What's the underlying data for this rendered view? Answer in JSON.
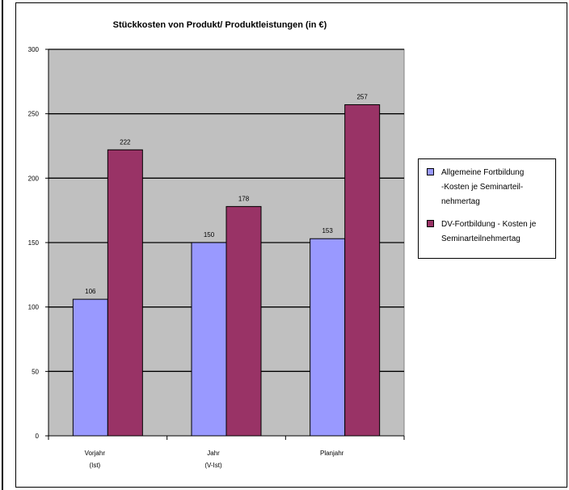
{
  "chart_data": {
    "type": "bar",
    "title": "Stückkosten von Produkt/ Produktleistungen (in €)",
    "categories": [
      [
        "Vorjahr",
        "(Ist)"
      ],
      [
        "Jahr",
        "(V-Ist)"
      ],
      [
        "Planjahr"
      ]
    ],
    "series": [
      {
        "name": "Allgemeine Fortbildung -Kosten je Seminarteil- nehmertag",
        "values": [
          106,
          150,
          153
        ],
        "color": "#9999ff"
      },
      {
        "name": "DV-Fortbildung - Kosten je Seminarteilnehmertag",
        "values": [
          222,
          178,
          257
        ],
        "color": "#993366"
      }
    ],
    "ylim": [
      0,
      300
    ],
    "yticks": [
      0,
      50,
      100,
      150,
      200,
      250,
      300
    ],
    "grid": true,
    "plot_background": "#c0c0c0",
    "legend_position": "right",
    "legend": {
      "items": [
        {
          "lines": [
            "Allgemeine Fortbildung",
            "-Kosten je Seminarteil-",
            "nehmertag"
          ],
          "color": "#9999ff"
        },
        {
          "lines": [
            "DV-Fortbildung - Kosten je",
            "Seminarteilnehmertag"
          ],
          "color": "#993366"
        }
      ]
    }
  }
}
